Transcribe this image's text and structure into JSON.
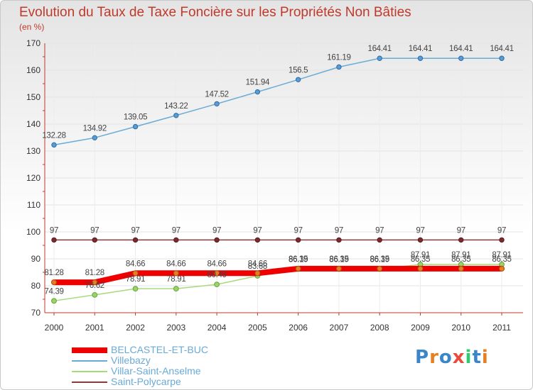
{
  "chart_data": {
    "type": "line",
    "title": "Evolution du Taux de Taxe Foncière sur les Propriétés Non Bâties",
    "ylabel": "(en %)",
    "xlabel": "",
    "categories": [
      "2000",
      "2001",
      "2002",
      "2003",
      "2004",
      "2005",
      "2006",
      "2007",
      "2008",
      "2009",
      "2010",
      "2011"
    ],
    "ylim": [
      70,
      170
    ],
    "yticks": [
      70,
      80,
      90,
      100,
      110,
      120,
      130,
      140,
      150,
      160,
      170
    ],
    "grid": true,
    "legend_position": "bottom-left",
    "series": [
      {
        "name": "Villebazy",
        "color": "#6aaad6",
        "values": [
          132.28,
          134.92,
          139.05,
          143.22,
          147.52,
          151.94,
          156.5,
          161.19,
          164.41,
          164.41,
          164.41,
          164.41
        ],
        "labels": [
          "132.28",
          "134.92",
          "139.05",
          "143.22",
          "147.52",
          "151.94",
          "156.5",
          "161.19",
          "164.41",
          "164.41",
          "164.41",
          "164.41"
        ]
      },
      {
        "name": "Saint-Polycarpe",
        "color": "#8b3a3a",
        "values": [
          97,
          97,
          97,
          97,
          97,
          97,
          97,
          97,
          97,
          97,
          97,
          97
        ],
        "labels": [
          "97",
          "97",
          "97",
          "97",
          "97",
          "97",
          "97",
          "97",
          "97",
          "97",
          "97",
          "97"
        ]
      },
      {
        "name": "Villar-Saint-Anselme",
        "color": "#a6db7a",
        "values": [
          74.39,
          76.62,
          78.91,
          78.91,
          80.49,
          83.68,
          86.19,
          86.19,
          86.19,
          87.91,
          87.91,
          87.91
        ],
        "labels": [
          "74.39",
          "76.62",
          "78.91",
          "78.91",
          "80.49",
          "83.68",
          "86.19",
          "86.19",
          "86.19",
          "87.91",
          "87.91",
          "87.91"
        ]
      },
      {
        "name": "BELCASTEL-ET-BUC",
        "color": "#ee0000",
        "values": [
          81.28,
          81.28,
          84.66,
          84.66,
          84.66,
          84.66,
          86.35,
          86.35,
          86.35,
          86.35,
          86.35,
          86.35
        ],
        "labels": [
          "81.28",
          "81.28",
          "84.66",
          "84.66",
          "84.66",
          "84.66",
          "86.35",
          "86.35",
          "86.35",
          "86.35",
          "86.35",
          "86.35"
        ]
      }
    ],
    "legend_order": [
      "BELCASTEL-ET-BUC",
      "Villebazy",
      "Villar-Saint-Anselme",
      "Saint-Polycarpe"
    ]
  },
  "legend_colors": {
    "BELCASTEL-ET-BUC": "#ee0000",
    "Villebazy": "#6aaad6",
    "Villar-Saint-Anselme": "#a6db7a",
    "Saint-Polycarpe": "#8b3a3a"
  },
  "brand": {
    "letters": [
      "P",
      "r",
      "o",
      "x",
      "i",
      "t",
      "i"
    ],
    "colors": [
      "#3a86c8",
      "#e67e22",
      "#3a86c8",
      "#e74c3c",
      "#2ecc71",
      "#3a86c8",
      "#e67e22"
    ]
  }
}
